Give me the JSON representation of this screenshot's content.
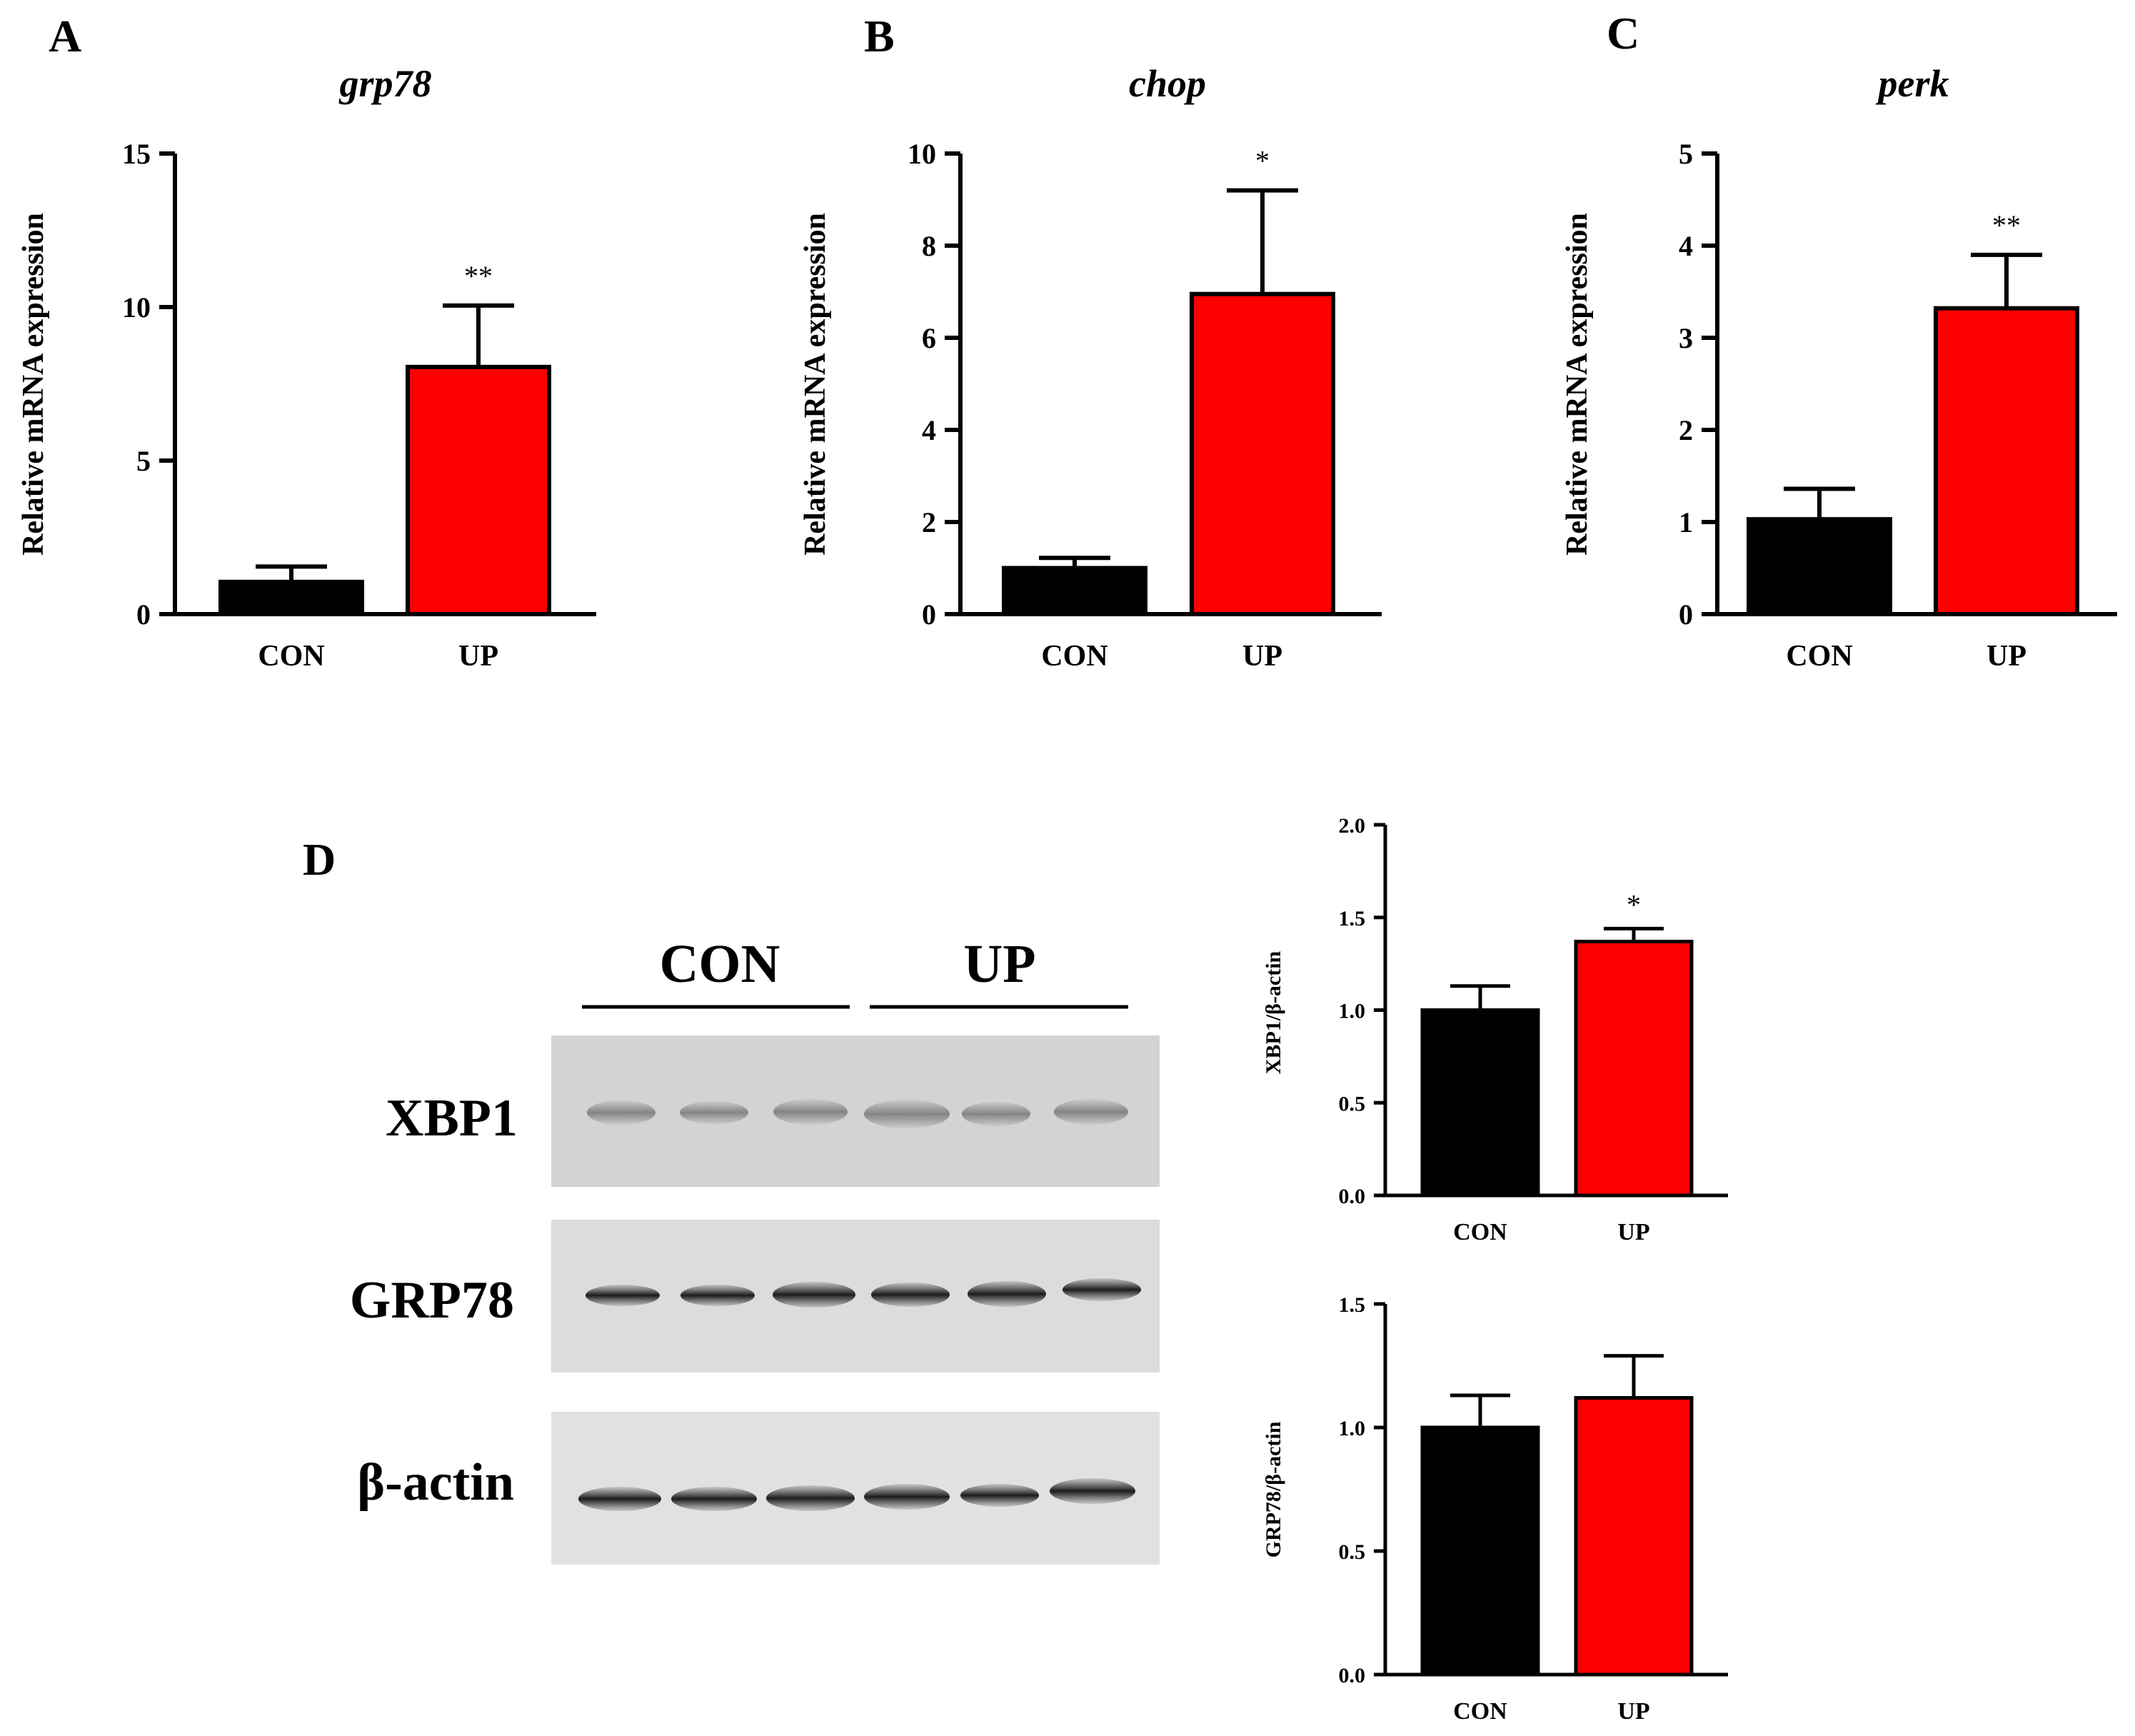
{
  "panels": {
    "a": "A",
    "b": "B",
    "c": "C",
    "d": "D"
  },
  "colors": {
    "con": "#000000",
    "up": "#ff0000",
    "axis": "#000000"
  },
  "blot": {
    "groups": [
      "CON",
      "UP"
    ],
    "rows": [
      "XBP1",
      "GRP78",
      "β-actin"
    ]
  },
  "chart_data": [
    {
      "id": "A",
      "type": "bar",
      "title": "grp78",
      "ylabel": "Relative mRNA expression",
      "xlabel": "",
      "categories": [
        "CON",
        "UP"
      ],
      "values": [
        1.05,
        8.05
      ],
      "errors": [
        0.5,
        2.0
      ],
      "significance": [
        "",
        "**"
      ],
      "ylim": [
        0,
        15
      ],
      "yticks": [
        0,
        5,
        10,
        15
      ],
      "tick_labels": [
        "0",
        "5",
        "10",
        "15"
      ]
    },
    {
      "id": "B",
      "type": "bar",
      "title": "chop",
      "ylabel": "Relative mRNA expression",
      "xlabel": "",
      "categories": [
        "CON",
        "UP"
      ],
      "values": [
        1.0,
        6.95
      ],
      "errors": [
        0.22,
        2.25
      ],
      "significance": [
        "",
        "*"
      ],
      "ylim": [
        0,
        10
      ],
      "yticks": [
        0,
        2,
        4,
        6,
        8,
        10
      ],
      "tick_labels": [
        "0",
        "2",
        "4",
        "6",
        "8",
        "10"
      ]
    },
    {
      "id": "C",
      "type": "bar",
      "title": "perk",
      "ylabel": "Relative mRNA expression",
      "xlabel": "",
      "categories": [
        "CON",
        "UP"
      ],
      "values": [
        1.03,
        3.32
      ],
      "errors": [
        0.33,
        0.58
      ],
      "significance": [
        "",
        "**"
      ],
      "ylim": [
        0,
        5
      ],
      "yticks": [
        0,
        1,
        2,
        3,
        4,
        5
      ],
      "tick_labels": [
        "0",
        "1",
        "2",
        "3",
        "4",
        "5"
      ]
    },
    {
      "id": "D1",
      "type": "bar",
      "title": "",
      "ylabel": "XBP1/β-actin",
      "xlabel": "",
      "categories": [
        "CON",
        "UP"
      ],
      "values": [
        1.0,
        1.37
      ],
      "errors": [
        0.13,
        0.07
      ],
      "significance": [
        "",
        "*"
      ],
      "ylim": [
        0,
        2.0
      ],
      "yticks": [
        0,
        0.5,
        1.0,
        1.5,
        2.0
      ],
      "tick_labels": [
        "0.0",
        "0.5",
        "1.0",
        "1.5",
        "2.0"
      ]
    },
    {
      "id": "D2",
      "type": "bar",
      "title": "",
      "ylabel": "GRP78/β-actin",
      "xlabel": "",
      "categories": [
        "CON",
        "UP"
      ],
      "values": [
        1.0,
        1.12
      ],
      "errors": [
        0.13,
        0.17
      ],
      "significance": [
        "",
        ""
      ],
      "ylim": [
        0,
        1.5
      ],
      "yticks": [
        0,
        0.5,
        1.0,
        1.5
      ],
      "tick_labels": [
        "0.0",
        "0.5",
        "1.0",
        "1.5"
      ]
    }
  ]
}
